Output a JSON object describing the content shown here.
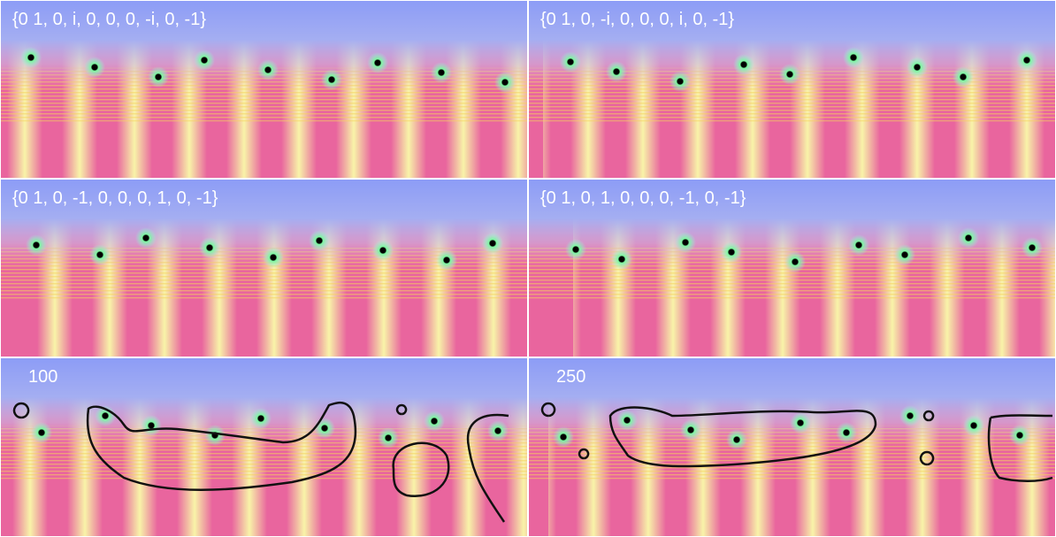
{
  "panels": [
    {
      "label": "{0 1, 0, i, 0, 0, 0, -i, 0, -1}"
    },
    {
      "label": "{0 1, 0, -i, 0, 0, 0, i, 0, -1}"
    },
    {
      "label": "{0 1, 0, -1, 0, 0, 0, 1, 0, -1}"
    },
    {
      "label": "{0 1, 0, 1, 0, 0, 0, -1, 0, -1}"
    },
    {
      "label": "100"
    },
    {
      "label": "250"
    }
  ]
}
